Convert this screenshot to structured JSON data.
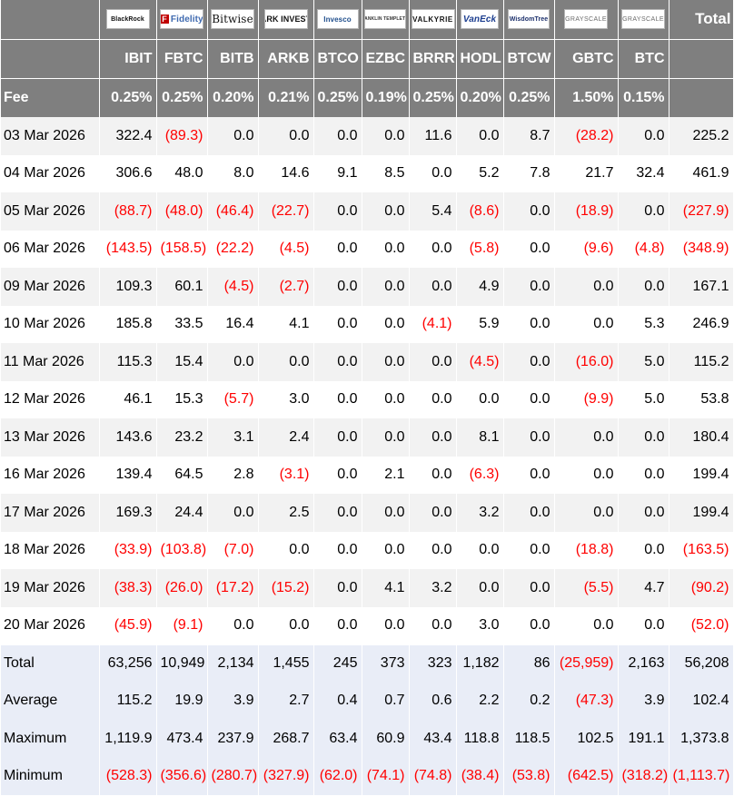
{
  "table": {
    "logos": [
      {
        "key": "blackrock",
        "text": "BlackRock"
      },
      {
        "key": "fidelity",
        "text": "Fidelity"
      },
      {
        "key": "bitwise",
        "text": "Bitwise"
      },
      {
        "key": "ark",
        "text": "ARK INVEST"
      },
      {
        "key": "invesco",
        "text": "Invesco"
      },
      {
        "key": "franklin",
        "text": "FRANKLIN TEMPLETON"
      },
      {
        "key": "valkyrie",
        "text": "VALKYRIE"
      },
      {
        "key": "vaneck",
        "text": "VanEck"
      },
      {
        "key": "wisdomtree",
        "text": "WisdomTree"
      },
      {
        "key": "grayscale",
        "text": "GRAYSCALE"
      },
      {
        "key": "grayscale",
        "text": "GRAYSCALE"
      }
    ],
    "total_header": "Total",
    "fee_label": "Fee",
    "tickers": [
      "IBIT",
      "FBTC",
      "BITB",
      "ARKB",
      "BTCO",
      "EZBC",
      "BRRR",
      "HODL",
      "BTCW",
      "GBTC",
      "BTC"
    ],
    "fees": [
      "0.25%",
      "0.25%",
      "0.20%",
      "0.21%",
      "0.25%",
      "0.19%",
      "0.25%",
      "0.20%",
      "0.25%",
      "1.50%",
      "0.15%"
    ],
    "rows": [
      {
        "date": "03 Mar 2026",
        "values": [
          "322.4",
          "(89.3)",
          "0.0",
          "0.0",
          "0.0",
          "0.0",
          "11.6",
          "0.0",
          "8.7",
          "(28.2)",
          "0.0"
        ],
        "total": "225.2"
      },
      {
        "date": "04 Mar 2026",
        "values": [
          "306.6",
          "48.0",
          "8.0",
          "14.6",
          "9.1",
          "8.5",
          "0.0",
          "5.2",
          "7.8",
          "21.7",
          "32.4"
        ],
        "total": "461.9"
      },
      {
        "date": "05 Mar 2026",
        "values": [
          "(88.7)",
          "(48.0)",
          "(46.4)",
          "(22.7)",
          "0.0",
          "0.0",
          "5.4",
          "(8.6)",
          "0.0",
          "(18.9)",
          "0.0"
        ],
        "total": "(227.9)"
      },
      {
        "date": "06 Mar 2026",
        "values": [
          "(143.5)",
          "(158.5)",
          "(22.2)",
          "(4.5)",
          "0.0",
          "0.0",
          "0.0",
          "(5.8)",
          "0.0",
          "(9.6)",
          "(4.8)"
        ],
        "total": "(348.9)"
      },
      {
        "date": "09 Mar 2026",
        "values": [
          "109.3",
          "60.1",
          "(4.5)",
          "(2.7)",
          "0.0",
          "0.0",
          "0.0",
          "4.9",
          "0.0",
          "0.0",
          "0.0"
        ],
        "total": "167.1"
      },
      {
        "date": "10 Mar 2026",
        "values": [
          "185.8",
          "33.5",
          "16.4",
          "4.1",
          "0.0",
          "0.0",
          "(4.1)",
          "5.9",
          "0.0",
          "0.0",
          "5.3"
        ],
        "total": "246.9"
      },
      {
        "date": "11 Mar 2026",
        "values": [
          "115.3",
          "15.4",
          "0.0",
          "0.0",
          "0.0",
          "0.0",
          "0.0",
          "(4.5)",
          "0.0",
          "(16.0)",
          "5.0"
        ],
        "total": "115.2"
      },
      {
        "date": "12 Mar 2026",
        "values": [
          "46.1",
          "15.3",
          "(5.7)",
          "3.0",
          "0.0",
          "0.0",
          "0.0",
          "0.0",
          "0.0",
          "(9.9)",
          "5.0"
        ],
        "total": "53.8"
      },
      {
        "date": "13 Mar 2026",
        "values": [
          "143.6",
          "23.2",
          "3.1",
          "2.4",
          "0.0",
          "0.0",
          "0.0",
          "8.1",
          "0.0",
          "0.0",
          "0.0"
        ],
        "total": "180.4"
      },
      {
        "date": "16 Mar 2026",
        "values": [
          "139.4",
          "64.5",
          "2.8",
          "(3.1)",
          "0.0",
          "2.1",
          "0.0",
          "(6.3)",
          "0.0",
          "0.0",
          "0.0"
        ],
        "total": "199.4"
      },
      {
        "date": "17 Mar 2026",
        "values": [
          "169.3",
          "24.4",
          "0.0",
          "2.5",
          "0.0",
          "0.0",
          "0.0",
          "3.2",
          "0.0",
          "0.0",
          "0.0"
        ],
        "total": "199.4"
      },
      {
        "date": "18 Mar 2026",
        "values": [
          "(33.9)",
          "(103.8)",
          "(7.0)",
          "0.0",
          "0.0",
          "0.0",
          "0.0",
          "0.0",
          "0.0",
          "(18.8)",
          "0.0"
        ],
        "total": "(163.5)"
      },
      {
        "date": "19 Mar 2026",
        "values": [
          "(38.3)",
          "(26.0)",
          "(17.2)",
          "(15.2)",
          "0.0",
          "4.1",
          "3.2",
          "0.0",
          "0.0",
          "(5.5)",
          "4.7"
        ],
        "total": "(90.2)"
      },
      {
        "date": "20 Mar 2026",
        "values": [
          "(45.9)",
          "(9.1)",
          "0.0",
          "0.0",
          "0.0",
          "0.0",
          "0.0",
          "3.0",
          "0.0",
          "0.0",
          "0.0"
        ],
        "total": "(52.0)"
      }
    ],
    "summary": [
      {
        "label": "Total",
        "values": [
          "63,256",
          "10,949",
          "2,134",
          "1,455",
          "245",
          "373",
          "323",
          "1,182",
          "86",
          "(25,959)",
          "2,163"
        ],
        "total": "56,208"
      },
      {
        "label": "Average",
        "values": [
          "115.2",
          "19.9",
          "3.9",
          "2.7",
          "0.4",
          "0.7",
          "0.6",
          "2.2",
          "0.2",
          "(47.3)",
          "3.9"
        ],
        "total": "102.4"
      },
      {
        "label": "Maximum",
        "values": [
          "1,119.9",
          "473.4",
          "237.9",
          "268.7",
          "63.4",
          "60.9",
          "43.4",
          "118.8",
          "118.5",
          "102.5",
          "191.1"
        ],
        "total": "1,373.8"
      },
      {
        "label": "Minimum",
        "values": [
          "(528.3)",
          "(356.6)",
          "(280.7)",
          "(327.9)",
          "(62.0)",
          "(74.1)",
          "(74.8)",
          "(38.4)",
          "(53.8)",
          "(642.5)",
          "(318.2)"
        ],
        "total": "(1,113.7)"
      }
    ],
    "colors": {
      "header_bg": "#7f7f7f",
      "alt_row_bg": "#f2f2f2",
      "summary_bg": "#e9edf7",
      "negative": "#ff0000"
    }
  }
}
